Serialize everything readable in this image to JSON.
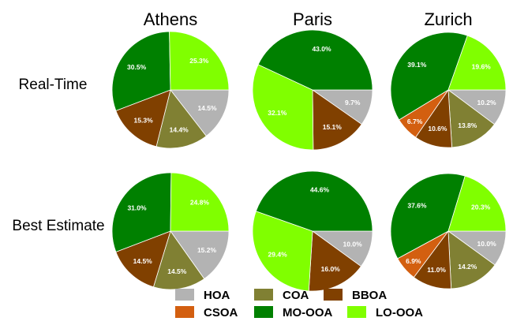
{
  "chart_data": {
    "type": "pie",
    "columns": [
      "Athens",
      "Paris",
      "Zurich"
    ],
    "rows": [
      "Real-Time",
      "Best Estimate"
    ],
    "legend": [
      {
        "name": "HOA",
        "color": "#b3b3b3"
      },
      {
        "name": "COA",
        "color": "#808033"
      },
      {
        "name": "BBOA",
        "color": "#804000"
      },
      {
        "name": "CSOA",
        "color": "#d35f10"
      },
      {
        "name": "MO-OOA",
        "color": "#008000"
      },
      {
        "name": "LO-OOA",
        "color": "#80ff00"
      }
    ],
    "pies": [
      {
        "row": "Real-Time",
        "column": "Athens",
        "slices": [
          {
            "name": "HOA",
            "value": 14.5,
            "label": "14.5%"
          },
          {
            "name": "COA",
            "value": 14.4,
            "label": "14.4%"
          },
          {
            "name": "BBOA",
            "value": 15.3,
            "label": "15.3%"
          },
          {
            "name": "MO-OOA",
            "value": 30.5,
            "label": "30.5%"
          },
          {
            "name": "LO-OOA",
            "value": 25.3,
            "label": "25.3%"
          }
        ]
      },
      {
        "row": "Real-Time",
        "column": "Paris",
        "slices": [
          {
            "name": "HOA",
            "value": 9.7,
            "label": "9.7%"
          },
          {
            "name": "BBOA",
            "value": 15.1,
            "label": "15.1%"
          },
          {
            "name": "LO-OOA",
            "value": 32.1,
            "label": "32.1%"
          },
          {
            "name": "MO-OOA",
            "value": 43.0,
            "label": "43.0%"
          }
        ]
      },
      {
        "row": "Real-Time",
        "column": "Zurich",
        "slices": [
          {
            "name": "HOA",
            "value": 10.2,
            "label": "10.2%"
          },
          {
            "name": "COA",
            "value": 13.8,
            "label": "13.8%"
          },
          {
            "name": "BBOA",
            "value": 10.6,
            "label": "10.6%"
          },
          {
            "name": "CSOA",
            "value": 6.7,
            "label": "6.7%"
          },
          {
            "name": "MO-OOA",
            "value": 39.1,
            "label": "39.1%"
          },
          {
            "name": "LO-OOA",
            "value": 19.6,
            "label": "19.6%"
          }
        ]
      },
      {
        "row": "Best Estimate",
        "column": "Athens",
        "slices": [
          {
            "name": "HOA",
            "value": 15.2,
            "label": "15.2%"
          },
          {
            "name": "COA",
            "value": 14.5,
            "label": "14.5%"
          },
          {
            "name": "BBOA",
            "value": 14.5,
            "label": "14.5%"
          },
          {
            "name": "MO-OOA",
            "value": 31.0,
            "label": "31.0%"
          },
          {
            "name": "LO-OOA",
            "value": 24.8,
            "label": "24.8%"
          }
        ]
      },
      {
        "row": "Best Estimate",
        "column": "Paris",
        "slices": [
          {
            "name": "HOA",
            "value": 10.0,
            "label": "10.0%"
          },
          {
            "name": "BBOA",
            "value": 16.0,
            "label": "16.0%"
          },
          {
            "name": "LO-OOA",
            "value": 29.4,
            "label": "29.4%"
          },
          {
            "name": "MO-OOA",
            "value": 44.6,
            "label": "44.6%"
          }
        ]
      },
      {
        "row": "Best Estimate",
        "column": "Zurich",
        "slices": [
          {
            "name": "HOA",
            "value": 10.0,
            "label": "10.0%"
          },
          {
            "name": "COA",
            "value": 14.2,
            "label": "14.2%"
          },
          {
            "name": "BBOA",
            "value": 11.0,
            "label": "11.0%"
          },
          {
            "name": "CSOA",
            "value": 6.9,
            "label": "6.9%"
          },
          {
            "name": "MO-OOA",
            "value": 37.6,
            "label": "37.6%"
          },
          {
            "name": "LO-OOA",
            "value": 20.3,
            "label": "20.3%"
          }
        ]
      }
    ]
  }
}
